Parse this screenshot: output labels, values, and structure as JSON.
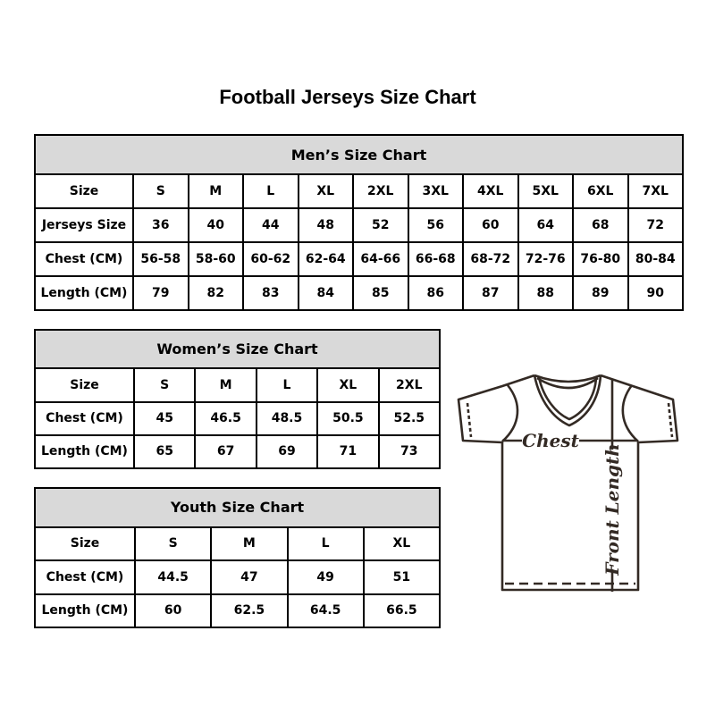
{
  "title": "Football Jerseys Size Chart",
  "tables": {
    "men": {
      "header": "Men’s Size Chart",
      "rows": [
        [
          "Size",
          "S",
          "M",
          "L",
          "XL",
          "2XL",
          "3XL",
          "4XL",
          "5XL",
          "6XL",
          "7XL"
        ],
        [
          "Jerseys Size",
          "36",
          "40",
          "44",
          "48",
          "52",
          "56",
          "60",
          "64",
          "68",
          "72"
        ],
        [
          "Chest (CM)",
          "56-58",
          "58-60",
          "60-62",
          "62-64",
          "64-66",
          "66-68",
          "68-72",
          "72-76",
          "76-80",
          "80-84"
        ],
        [
          "Length (CM)",
          "79",
          "82",
          "83",
          "84",
          "85",
          "86",
          "87",
          "88",
          "89",
          "90"
        ]
      ]
    },
    "women": {
      "header": "Women’s Size Chart",
      "rows": [
        [
          "Size",
          "S",
          "M",
          "L",
          "XL",
          "2XL"
        ],
        [
          "Chest (CM)",
          "45",
          "46.5",
          "48.5",
          "50.5",
          "52.5"
        ],
        [
          "Length (CM)",
          "65",
          "67",
          "69",
          "71",
          "73"
        ]
      ]
    },
    "youth": {
      "header": "Youth Size Chart",
      "rows": [
        [
          "Size",
          "S",
          "M",
          "L",
          "XL"
        ],
        [
          "Chest (CM)",
          "44.5",
          "47",
          "49",
          "51"
        ],
        [
          "Length (CM)",
          "60",
          "62.5",
          "64.5",
          "66.5"
        ]
      ]
    }
  },
  "diagram": {
    "chest_label": "Chest",
    "front_length_label": "Front Length"
  },
  "colors": {
    "header_bg": "#d9d9d9",
    "table_border": "#000000",
    "diagram_line": "#332a24"
  }
}
